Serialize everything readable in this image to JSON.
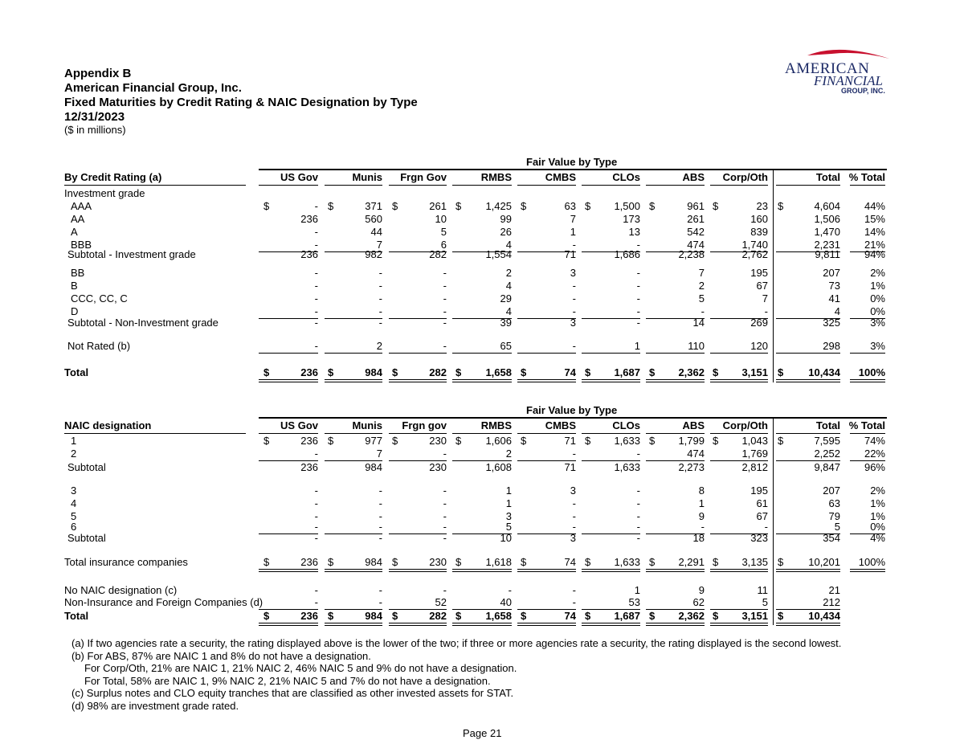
{
  "header": {
    "line1": "Appendix B",
    "line2": "American Financial Group, Inc.",
    "line3": "Fixed Maturities by Credit Rating & NAIC Designation by Type",
    "line4": "12/31/2023",
    "units": "($ in millions)"
  },
  "logo": {
    "word1": "AMERICAN",
    "word2": "FINANCIAL",
    "word3": "GROUP, INC."
  },
  "table1": {
    "group_title": "Fair Value by Type",
    "row_header": "By Credit Rating (a)",
    "columns": [
      "US Gov",
      "Munis",
      "Frgn Gov",
      "RMBS",
      "CMBS",
      "CLOs",
      "ABS",
      "Corp/Oth",
      "Total",
      "% Total"
    ],
    "rows": [
      {
        "label": "Investment grade",
        "values": []
      },
      {
        "label": "AAA",
        "values": [
          "-",
          "371",
          "261",
          "1,425",
          "63",
          "1,500",
          "961",
          "23",
          "4,604",
          "44%"
        ],
        "dollar": true
      },
      {
        "label": "AA",
        "values": [
          "236",
          "560",
          "10",
          "99",
          "7",
          "173",
          "261",
          "160",
          "1,506",
          "15%"
        ]
      },
      {
        "label": "A",
        "values": [
          "-",
          "44",
          "5",
          "26",
          "1",
          "13",
          "542",
          "839",
          "1,470",
          "14%"
        ]
      },
      {
        "label": "BBB",
        "values": [
          "-",
          "7",
          "6",
          "4",
          "-",
          "-",
          "474",
          "1,740",
          "2,231",
          "21%"
        ]
      },
      {
        "label": "Subtotal - Investment grade",
        "values": [
          "236",
          "982",
          "282",
          "1,554",
          "71",
          "1,686",
          "2,238",
          "2,762",
          "9,811",
          "94%"
        ]
      },
      {
        "label": "BB",
        "values": [
          "-",
          "-",
          "-",
          "2",
          "3",
          "-",
          "7",
          "195",
          "207",
          "2%"
        ]
      },
      {
        "label": "B",
        "values": [
          "-",
          "-",
          "-",
          "4",
          "-",
          "-",
          "2",
          "67",
          "73",
          "1%"
        ]
      },
      {
        "label": "CCC, CC, C",
        "values": [
          "-",
          "-",
          "-",
          "29",
          "-",
          "-",
          "5",
          "7",
          "41",
          "0%"
        ]
      },
      {
        "label": "D",
        "values": [
          "-",
          "-",
          "-",
          "4",
          "-",
          "-",
          "-",
          "-",
          "4",
          "0%"
        ]
      },
      {
        "label": "Subtotal - Non-Investment grade",
        "values": [
          "-",
          "-",
          "-",
          "39",
          "3",
          "-",
          "14",
          "269",
          "325",
          "3%"
        ]
      },
      {
        "label": "Not Rated (b)",
        "values": [
          "-",
          "2",
          "-",
          "65",
          "-",
          "1",
          "110",
          "120",
          "298",
          "3%"
        ]
      },
      {
        "label": "Total",
        "values": [
          "236",
          "984",
          "282",
          "1,658",
          "74",
          "1,687",
          "2,362",
          "3,151",
          "10,434",
          "100%"
        ],
        "dollar": true
      }
    ]
  },
  "table2": {
    "group_title": "Fair Value by Type",
    "row_header": "NAIC designation",
    "columns": [
      "US Gov",
      "Munis",
      "Frgn gov",
      "RMBS",
      "CMBS",
      "CLOs",
      "ABS",
      "Corp/Oth",
      "Total",
      "% Total"
    ],
    "rows": [
      {
        "label": "1",
        "values": [
          "236",
          "977",
          "230",
          "1,606",
          "71",
          "1,633",
          "1,799",
          "1,043",
          "7,595",
          "74%"
        ],
        "dollar": true
      },
      {
        "label": "2",
        "values": [
          "-",
          "7",
          "-",
          "2",
          "-",
          "-",
          "474",
          "1,769",
          "2,252",
          "22%"
        ]
      },
      {
        "label": "Subtotal",
        "values": [
          "236",
          "984",
          "230",
          "1,608",
          "71",
          "1,633",
          "2,273",
          "2,812",
          "9,847",
          "96%"
        ]
      },
      {
        "label": "3",
        "values": [
          "-",
          "-",
          "-",
          "1",
          "3",
          "-",
          "8",
          "195",
          "207",
          "2%"
        ]
      },
      {
        "label": "4",
        "values": [
          "-",
          "-",
          "-",
          "1",
          "-",
          "-",
          "1",
          "61",
          "63",
          "1%"
        ]
      },
      {
        "label": "5",
        "values": [
          "-",
          "-",
          "-",
          "3",
          "-",
          "-",
          "9",
          "67",
          "79",
          "1%"
        ]
      },
      {
        "label": "6",
        "values": [
          "-",
          "-",
          "-",
          "5",
          "-",
          "-",
          "-",
          "-",
          "5",
          "0%"
        ]
      },
      {
        "label": "Subtotal",
        "values": [
          "-",
          "-",
          "-",
          "10",
          "3",
          "-",
          "18",
          "323",
          "354",
          "4%"
        ]
      },
      {
        "label": "Total insurance companies",
        "values": [
          "236",
          "984",
          "230",
          "1,618",
          "74",
          "1,633",
          "2,291",
          "3,135",
          "10,201",
          "100%"
        ],
        "dollar": true
      },
      {
        "label": "No NAIC designation (c)",
        "values": [
          "-",
          "-",
          "-",
          "-",
          "-",
          "1",
          "9",
          "11",
          "21",
          ""
        ]
      },
      {
        "label": "Non-Insurance and Foreign Companies (d)",
        "values": [
          "-",
          "-",
          "52",
          "40",
          "-",
          "53",
          "62",
          "5",
          "212",
          ""
        ]
      },
      {
        "label": "Total",
        "values": [
          "236",
          "984",
          "282",
          "1,658",
          "74",
          "1,687",
          "2,362",
          "3,151",
          "10,434",
          ""
        ],
        "dollar": true
      }
    ]
  },
  "currency_symbol": "$",
  "footnotes": [
    "(a) If two agencies rate a security, the rating displayed above is the lower of the two; if three or more agencies rate a security, the rating displayed is the second lowest.",
    "(b) For ABS, 87% are NAIC 1 and 8% do not have a designation.",
    "For Corp/Oth, 21% are NAIC 1, 21% NAIC 2, 46% NAIC 5 and 9% do not have a designation.",
    "For Total, 58% are NAIC 1, 9% NAIC 2, 21% NAIC 5 and 7% do not have a designation.",
    "(c) Surplus notes and CLO equity tranches that are classified as other invested assets for STAT.",
    "(d) 98% are investment grade rated."
  ],
  "page_label": "Page 21"
}
